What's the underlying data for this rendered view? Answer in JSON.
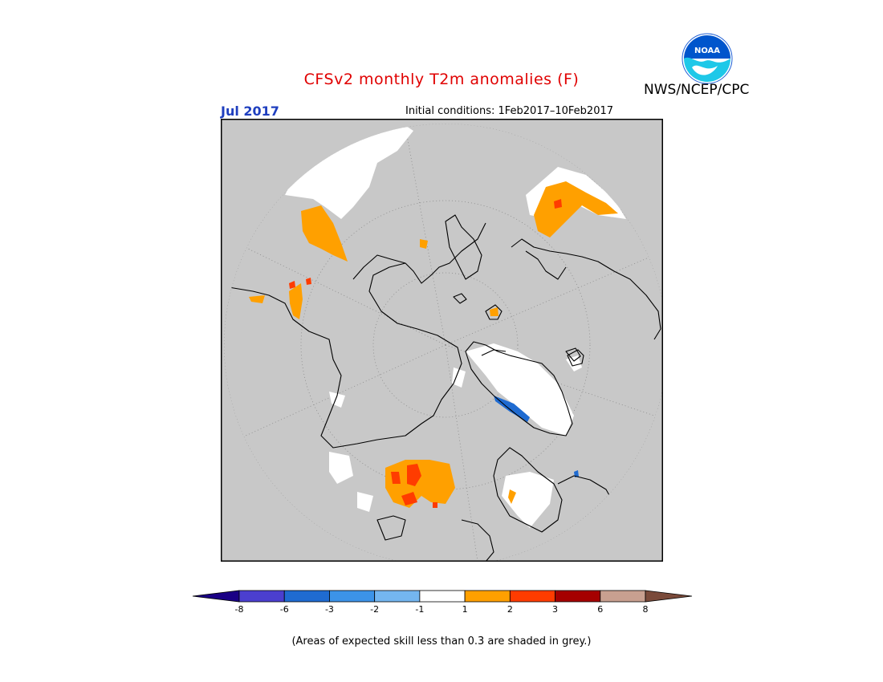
{
  "title": "CFSv2 monthly T2m anomalies (F)",
  "target_month": "Jul 2017",
  "initial_conditions": "Initial conditions: 1Feb2017–10Feb2017",
  "agency": "NWS/NCEP/CPC",
  "logo_text": "NOAA",
  "footnote": "(Areas of expected skill less than 0.3 are shaded in grey.)",
  "colors": {
    "background_grey": "#c8c8c8",
    "land_outline": "#000000",
    "title_red": "#e00000",
    "month_blue": "#1f3fbf",
    "logo_blue": "#0055cc",
    "logo_cyan": "#1ec8e8"
  },
  "colorbar": {
    "bins": [
      {
        "color": "#1a0085",
        "range": "< -8"
      },
      {
        "color": "#4b3fcf",
        "range": "-8 to -6"
      },
      {
        "color": "#1f6bd1",
        "range": "-6 to -3"
      },
      {
        "color": "#3c93e8",
        "range": "-3 to -2"
      },
      {
        "color": "#74b6f0",
        "range": "-2 to -1"
      },
      {
        "color": "#ffffff",
        "range": "-1 to 1"
      },
      {
        "color": "#ffa000",
        "range": "1 to 2"
      },
      {
        "color": "#ff3c00",
        "range": "2 to 3"
      },
      {
        "color": "#a50000",
        "range": "3 to 6"
      },
      {
        "color": "#c8a090",
        "range": "6 to 8"
      },
      {
        "color": "#7a4a3a",
        "range": "> 8"
      }
    ],
    "tick_labels": [
      "-8",
      "-6",
      "-3",
      "-2",
      "-1",
      "1",
      "2",
      "3",
      "6",
      "8"
    ]
  }
}
